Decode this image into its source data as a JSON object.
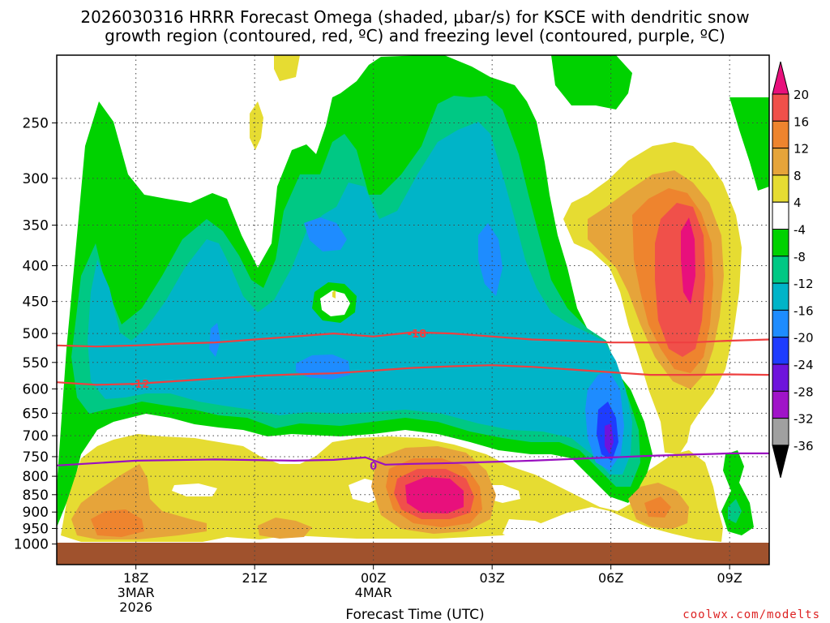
{
  "title_line1": "2026030316 HRRR Forecast Omega (shaded, μbar/s) for KSCE with dendritic snow",
  "title_line2": "growth region (contoured, red, ºC) and freezing level (contoured, purple, ºC)",
  "credit": "coolwx.com/modelts",
  "chart_data": {
    "type": "heatmap",
    "title": "2026030316 HRRR Forecast Omega (shaded, μbar/s) for KSCE with dendritic snow growth region (contoured, red, ºC) and freezing level (contoured, purple, ºC)",
    "xlabel": "Forecast Time (UTC)",
    "ylabel": "",
    "y_scale": "log-pressure (inverted)",
    "y_ticks": [
      250,
      300,
      350,
      400,
      450,
      500,
      550,
      600,
      650,
      700,
      750,
      800,
      850,
      900,
      950,
      1000
    ],
    "x_ticks": [
      {
        "label": "18Z",
        "sub1": "3MAR",
        "sub2": "2026"
      },
      {
        "label": "21Z",
        "sub1": "",
        "sub2": ""
      },
      {
        "label": "00Z",
        "sub1": "4MAR",
        "sub2": ""
      },
      {
        "label": "03Z",
        "sub1": "",
        "sub2": ""
      },
      {
        "label": "06Z",
        "sub1": "",
        "sub2": ""
      },
      {
        "label": "09Z",
        "sub1": "",
        "sub2": ""
      }
    ],
    "x_hours": [
      18,
      21,
      24,
      27,
      30,
      33
    ],
    "xlim": [
      16,
      34
    ],
    "ylim": [
      1000,
      200
    ],
    "grid": true,
    "colorbar_labels": [
      "20",
      "16",
      "12",
      "8",
      "4",
      "-4",
      "-8",
      "-12",
      "-16",
      "-20",
      "-24",
      "-28",
      "-32",
      "-36"
    ],
    "colorbar_levels": [
      {
        "range": ">20",
        "color": "#e8107c"
      },
      {
        "range": "16 to 20",
        "color": "#f0504a"
      },
      {
        "range": "12 to 16",
        "color": "#ee842e"
      },
      {
        "range": "8 to 12",
        "color": "#e6a43a"
      },
      {
        "range": "4 to 8",
        "color": "#e6dc32"
      },
      {
        "range": "-4 to 4",
        "color": "#ffffff"
      },
      {
        "range": "-8 to -4",
        "color": "#00d200"
      },
      {
        "range": "-12 to -8",
        "color": "#00c884"
      },
      {
        "range": "-16 to -12",
        "color": "#00b4c8"
      },
      {
        "range": "-20 to -16",
        "color": "#1e8cff"
      },
      {
        "range": "-24 to -20",
        "color": "#1e3cff"
      },
      {
        "range": "-28 to -24",
        "color": "#6e14dc"
      },
      {
        "range": "-32 to -28",
        "color": "#a014c8"
      },
      {
        "range": "-36 to -32",
        "color": "#a0a0a0"
      },
      {
        "range": "<-36",
        "color": "#000000"
      }
    ],
    "series": [
      {
        "name": "-18",
        "color": "#ee4040",
        "x": [
          16,
          17,
          18,
          19,
          20,
          21,
          22,
          23,
          24,
          25,
          26,
          27,
          28,
          29,
          30,
          31,
          32,
          33,
          34
        ],
        "y": [
          520,
          522,
          520,
          517,
          515,
          510,
          505,
          500,
          505,
          498,
          500,
          505,
          510,
          512,
          515,
          515,
          515,
          512,
          510
        ],
        "label_at": [
          25.1,
          500
        ],
        "label": "-18"
      },
      {
        "name": "-12",
        "color": "#ee4040",
        "x": [
          16,
          17,
          18,
          19,
          20,
          21,
          22,
          23,
          24,
          25,
          26,
          27,
          28,
          29,
          30,
          31,
          32,
          33,
          34
        ],
        "y": [
          587,
          592,
          590,
          585,
          580,
          575,
          572,
          570,
          565,
          560,
          557,
          555,
          558,
          563,
          568,
          573,
          573,
          572,
          573
        ],
        "label_at": [
          18.1,
          590
        ],
        "label": "-12"
      },
      {
        "name": "0",
        "color": "#9a10c0",
        "x": [
          16,
          18,
          20,
          22,
          23,
          23.8,
          24.3,
          25,
          26,
          27,
          28,
          29,
          30,
          31,
          32,
          33,
          34
        ],
        "y": [
          772,
          760,
          757,
          760,
          758,
          752,
          770,
          768,
          766,
          763,
          760,
          756,
          752,
          748,
          745,
          742,
          742
        ],
        "label_at": [
          24.0,
          772
        ],
        "label": "0"
      }
    ]
  }
}
